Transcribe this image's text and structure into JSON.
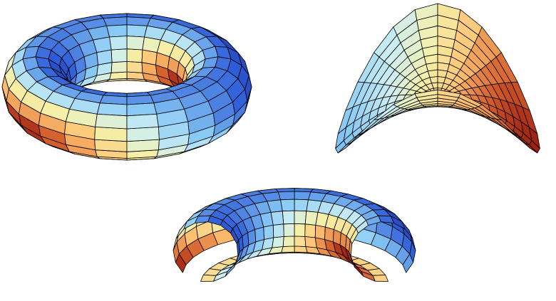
{
  "figure": {
    "background": "#ffffff",
    "edge_color": "#000000",
    "surfaces": [
      {
        "id": "torus",
        "name": "torus-surface",
        "type": "torus",
        "R": 3.0,
        "r": 1.1,
        "u_segments": 24,
        "v_segments": 16,
        "elev_deg": 26,
        "rotation_deg": 0
      },
      {
        "id": "saddle",
        "name": "saddle-surface",
        "type": "monkey-saddle-disc",
        "amplitude": 0.55,
        "u_segments": 28,
        "v_segments": 12,
        "elev_deg": 25,
        "rotation_deg": 90
      },
      {
        "id": "half-torus",
        "name": "half-torus-surface",
        "type": "half-torus-open",
        "R": 3.0,
        "r": 1.1,
        "u_segments": 16,
        "v_segments": 14,
        "elev_deg": 22,
        "rotation_deg": 0
      }
    ],
    "palette": [
      {
        "t": 0.0,
        "color": "#0a0a80"
      },
      {
        "t": 0.18,
        "color": "#2f5ed8"
      },
      {
        "t": 0.38,
        "color": "#86c8f5"
      },
      {
        "t": 0.52,
        "color": "#cdeff4"
      },
      {
        "t": 0.64,
        "color": "#f5f0a8"
      },
      {
        "t": 0.78,
        "color": "#ffc070"
      },
      {
        "t": 0.9,
        "color": "#d25a28"
      },
      {
        "t": 1.0,
        "color": "#8a0a0a"
      }
    ]
  }
}
